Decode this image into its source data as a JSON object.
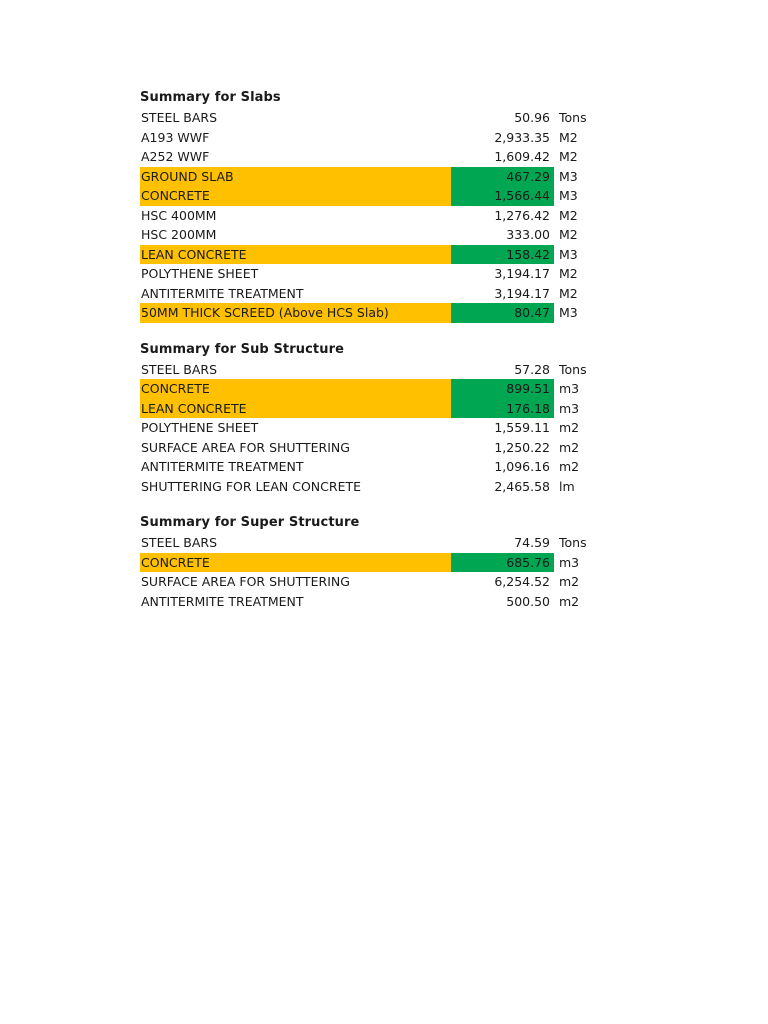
{
  "page": {
    "background": "#ffffff",
    "text_color": "#1a1a1a"
  },
  "colors": {
    "highlight_label_bg": "#FFC000",
    "highlight_value_bg": "#00A651"
  },
  "sections": [
    {
      "title": "Summary for Slabs",
      "rows": [
        {
          "label": "STEEL BARS",
          "value": "50.96",
          "unit": "Tons",
          "highlight": false
        },
        {
          "label": "A193 WWF",
          "value": "2,933.35",
          "unit": "M2",
          "highlight": false
        },
        {
          "label": "A252 WWF",
          "value": "1,609.42",
          "unit": "M2",
          "highlight": false
        },
        {
          "label": "GROUND SLAB",
          "value": "467.29",
          "unit": "M3",
          "highlight": true
        },
        {
          "label": "CONCRETE",
          "value": "1,566.44",
          "unit": "M3",
          "highlight": true
        },
        {
          "label": "HSC 400MM",
          "value": "1,276.42",
          "unit": "M2",
          "highlight": false
        },
        {
          "label": "HSC 200MM",
          "value": "333.00",
          "unit": "M2",
          "highlight": false
        },
        {
          "label": "LEAN CONCRETE",
          "value": "158.42",
          "unit": "M3",
          "highlight": true
        },
        {
          "label": "POLYTHENE SHEET",
          "value": "3,194.17",
          "unit": "M2",
          "highlight": false
        },
        {
          "label": "ANTITERMITE TREATMENT",
          "value": "3,194.17",
          "unit": "M2",
          "highlight": false
        },
        {
          "label": "50MM THICK SCREED (Above HCS Slab)",
          "value": "80.47",
          "unit": "M3",
          "highlight": true
        }
      ]
    },
    {
      "title": "Summary for Sub Structure",
      "rows": [
        {
          "label": "STEEL BARS",
          "value": "57.28",
          "unit": "Tons",
          "highlight": false
        },
        {
          "label": "CONCRETE",
          "value": "899.51",
          "unit": "m3",
          "highlight": true
        },
        {
          "label": "LEAN CONCRETE",
          "value": "176.18",
          "unit": "m3",
          "highlight": true
        },
        {
          "label": "POLYTHENE SHEET",
          "value": "1,559.11",
          "unit": "m2",
          "highlight": false
        },
        {
          "label": "SURFACE AREA FOR SHUTTERING",
          "value": "1,250.22",
          "unit": "m2",
          "highlight": false
        },
        {
          "label": "ANTITERMITE TREATMENT",
          "value": "1,096.16",
          "unit": "m2",
          "highlight": false
        },
        {
          "label": "SHUTTERING FOR LEAN CONCRETE",
          "value": "2,465.58",
          "unit": "lm",
          "highlight": false
        }
      ]
    },
    {
      "title": "Summary for Super Structure",
      "rows": [
        {
          "label": "STEEL BARS",
          "value": "74.59",
          "unit": "Tons",
          "highlight": false
        },
        {
          "label": "CONCRETE",
          "value": "685.76",
          "unit": "m3",
          "highlight": true
        },
        {
          "label": "SURFACE AREA FOR SHUTTERING",
          "value": "6,254.52",
          "unit": "m2",
          "highlight": false
        },
        {
          "label": "ANTITERMITE TREATMENT",
          "value": "500.50",
          "unit": "m2",
          "highlight": false
        }
      ]
    }
  ]
}
